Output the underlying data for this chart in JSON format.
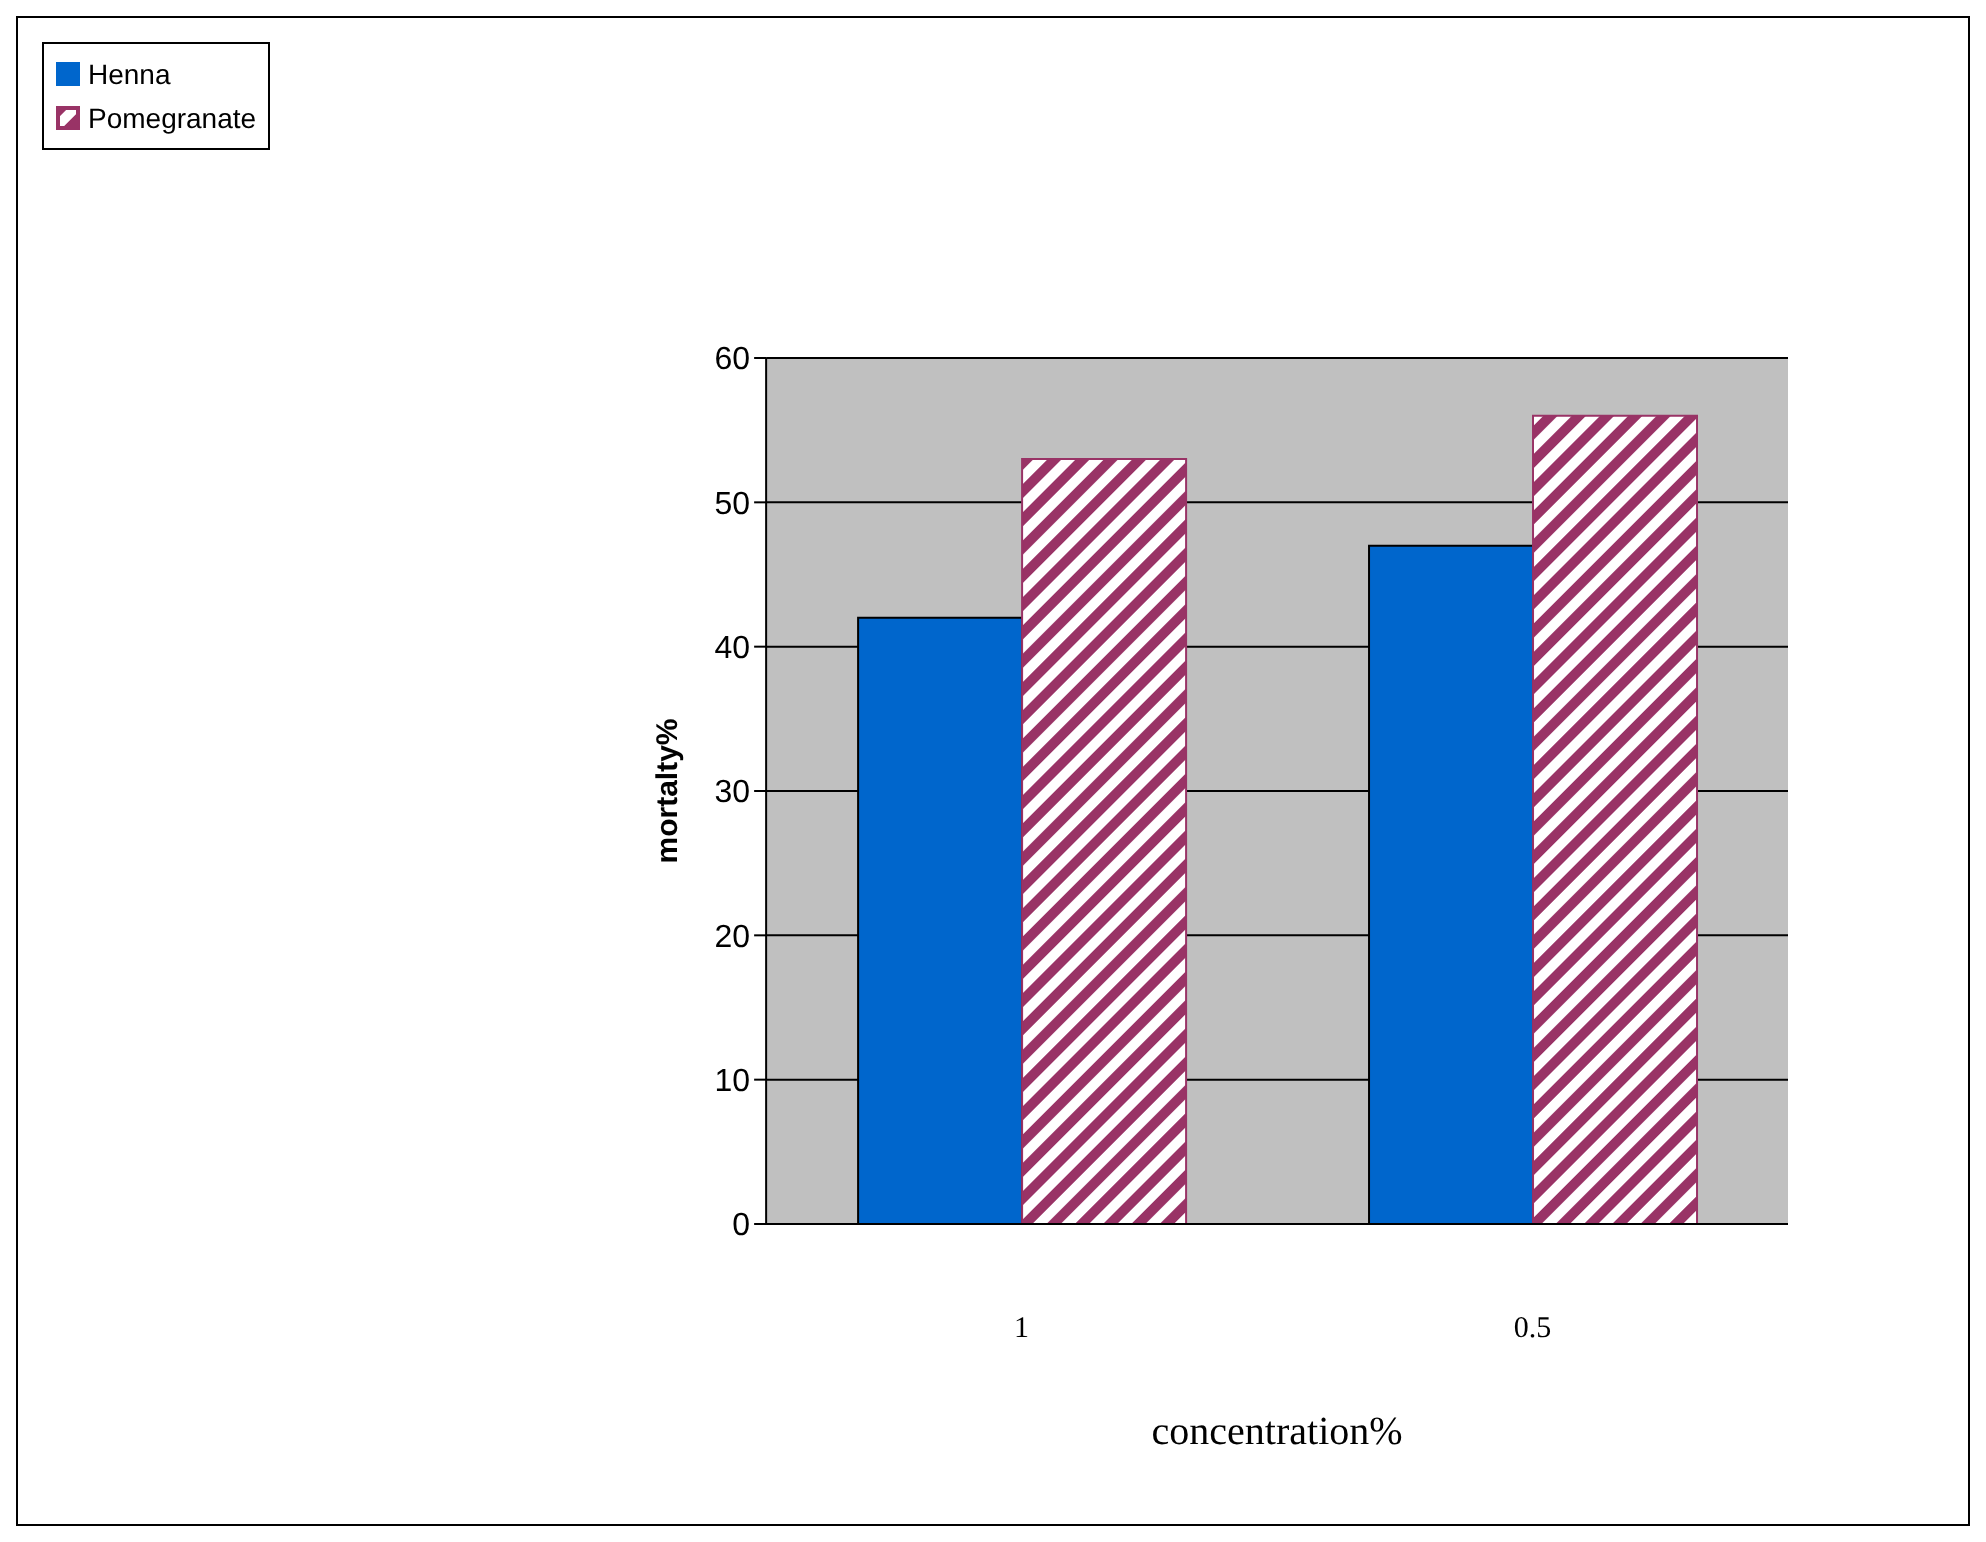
{
  "chart_data": {
    "type": "bar",
    "categories": [
      "1",
      "0.5"
    ],
    "xlabel": "concentration%",
    "ylabel": "mortalty%",
    "series": [
      {
        "name": "Henna",
        "color": "#0066cc",
        "values": [
          42,
          47
        ]
      },
      {
        "name": "Pomegranate",
        "color": "#993366",
        "values": [
          53,
          56
        ]
      }
    ],
    "ylim": [
      0,
      60
    ],
    "yticks": [
      0,
      10,
      20,
      30,
      40,
      50,
      60
    ],
    "grid": "y",
    "legend": "top left"
  }
}
